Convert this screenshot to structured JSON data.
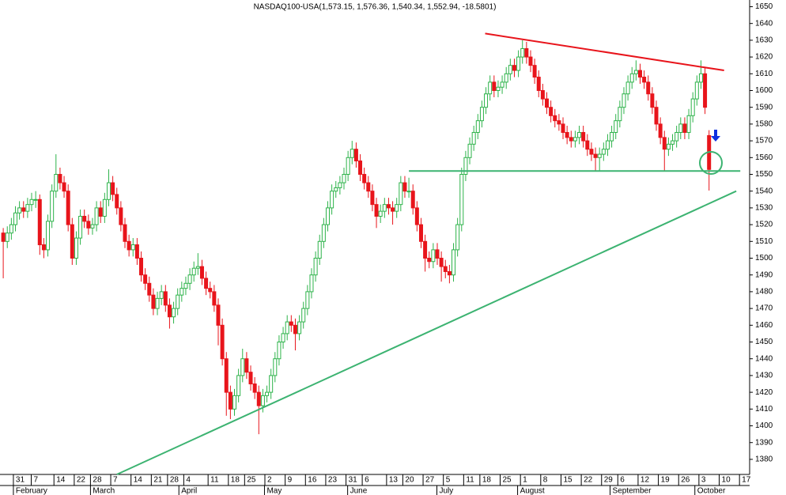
{
  "chart_data": {
    "type": "candlestick",
    "title": "NASDAQ100-USA(1,573.15, 1,576.36, 1,540.34, 1,552.94, -18.5801)",
    "up_color": "#2db34a",
    "down_color": "#e8141b",
    "ylim": [
      1371,
      1654
    ],
    "xlim": [
      -0.8,
      184
    ],
    "yticks": [
      1380,
      1390,
      1400,
      1410,
      1420,
      1430,
      1440,
      1450,
      1460,
      1470,
      1480,
      1490,
      1500,
      1510,
      1520,
      1530,
      1540,
      1550,
      1560,
      1570,
      1580,
      1590,
      1600,
      1610,
      1620,
      1630,
      1640,
      1650
    ],
    "xticks": [
      {
        "value": 2.5,
        "label": "31"
      },
      {
        "value": 6.9,
        "label": "7"
      },
      {
        "value": 12.5,
        "label": "14"
      },
      {
        "value": 17.5,
        "label": "22"
      },
      {
        "value": 21.5,
        "label": "28"
      },
      {
        "value": 26.5,
        "label": "7"
      },
      {
        "value": 31.5,
        "label": "14"
      },
      {
        "value": 36.5,
        "label": "21"
      },
      {
        "value": 40.5,
        "label": "28"
      },
      {
        "value": 44.5,
        "label": "4"
      },
      {
        "value": 50.5,
        "label": "11"
      },
      {
        "value": 55.5,
        "label": "18"
      },
      {
        "value": 59.5,
        "label": "25"
      },
      {
        "value": 64.5,
        "label": "2"
      },
      {
        "value": 69.5,
        "label": "9"
      },
      {
        "value": 74.5,
        "label": "16"
      },
      {
        "value": 79.5,
        "label": "23"
      },
      {
        "value": 84.5,
        "label": "31"
      },
      {
        "value": 88.5,
        "label": "6"
      },
      {
        "value": 94.5,
        "label": "13"
      },
      {
        "value": 98.5,
        "label": "20"
      },
      {
        "value": 103.5,
        "label": "27"
      },
      {
        "value": 108.5,
        "label": "5"
      },
      {
        "value": 113.5,
        "label": "11"
      },
      {
        "value": 117.5,
        "label": "18"
      },
      {
        "value": 122.5,
        "label": "25"
      },
      {
        "value": 127.5,
        "label": "1"
      },
      {
        "value": 132.5,
        "label": "8"
      },
      {
        "value": 137.5,
        "label": "15"
      },
      {
        "value": 142.5,
        "label": "22"
      },
      {
        "value": 147.5,
        "label": "29"
      },
      {
        "value": 151.5,
        "label": "6"
      },
      {
        "value": 156.5,
        "label": "12"
      },
      {
        "value": 161.5,
        "label": "19"
      },
      {
        "value": 166.5,
        "label": "26"
      },
      {
        "value": 171.5,
        "label": "3"
      },
      {
        "value": 176.5,
        "label": "10"
      },
      {
        "value": 181.5,
        "label": "17"
      }
    ],
    "months": [
      {
        "label": "February",
        "start": 2.5
      },
      {
        "label": "March",
        "start": 21.5
      },
      {
        "label": "April",
        "start": 43.3
      },
      {
        "label": "May",
        "start": 64.4
      },
      {
        "label": "June",
        "start": 84.9
      },
      {
        "label": "July",
        "start": 106.9
      },
      {
        "label": "August",
        "start": 126.8
      },
      {
        "label": "September",
        "start": 149.6
      },
      {
        "label": "October",
        "start": 170.5
      }
    ],
    "open": [
      1515,
      1510,
      1515,
      1520,
      1527,
      1530,
      1528,
      1532,
      1535,
      1535,
      1508,
      1505,
      1522,
      1540,
      1550,
      1545,
      1540,
      1520,
      1500,
      1512,
      1525,
      1522,
      1518,
      1520,
      1530,
      1525,
      1535,
      1545,
      1538,
      1530,
      1520,
      1510,
      1505,
      1508,
      1500,
      1490,
      1485,
      1478,
      1470,
      1476,
      1480,
      1472,
      1465,
      1470,
      1478,
      1482,
      1485,
      1490,
      1494,
      1495,
      1488,
      1482,
      1480,
      1472,
      1460,
      1440,
      1420,
      1410,
      1418,
      1430,
      1440,
      1432,
      1425,
      1420,
      1412,
      1418,
      1420,
      1430,
      1440,
      1450,
      1455,
      1462,
      1460,
      1455,
      1462,
      1470,
      1480,
      1490,
      1500,
      1510,
      1520,
      1530,
      1540,
      1542,
      1545,
      1550,
      1560,
      1565,
      1558,
      1550,
      1545,
      1540,
      1532,
      1525,
      1528,
      1532,
      1530,
      1528,
      1532,
      1545,
      1540,
      1540,
      1530,
      1520,
      1510,
      1500,
      1498,
      1505,
      1500,
      1495,
      1492,
      1490,
      1505,
      1520,
      1550,
      1560,
      1568,
      1575,
      1582,
      1590,
      1598,
      1605,
      1600,
      1602,
      1605,
      1610,
      1615,
      1612,
      1620,
      1625,
      1620,
      1615,
      1608,
      1600,
      1595,
      1590,
      1585,
      1582,
      1580,
      1575,
      1572,
      1570,
      1572,
      1575,
      1570,
      1565,
      1562,
      1560,
      1562,
      1565,
      1570,
      1575,
      1582,
      1590,
      1598,
      1605,
      1610,
      1612,
      1608,
      1605,
      1598,
      1590,
      1580,
      1572,
      1565,
      1568,
      1570,
      1575,
      1580,
      1575,
      1585,
      1595,
      1605,
      1610,
      1573.15
    ],
    "high": [
      1518,
      1519,
      1524,
      1531,
      1534,
      1534,
      1536,
      1539,
      1540,
      1538,
      1512,
      1526,
      1544,
      1562,
      1554,
      1549,
      1544,
      1524,
      1516,
      1529,
      1529,
      1526,
      1524,
      1534,
      1534,
      1539,
      1553,
      1549,
      1542,
      1534,
      1524,
      1514,
      1512,
      1512,
      1504,
      1494,
      1489,
      1482,
      1480,
      1484,
      1484,
      1476,
      1474,
      1482,
      1486,
      1489,
      1494,
      1498,
      1503,
      1499,
      1492,
      1486,
      1484,
      1476,
      1464,
      1444,
      1424,
      1422,
      1434,
      1446,
      1444,
      1436,
      1429,
      1424,
      1422,
      1424,
      1434,
      1444,
      1454,
      1459,
      1466,
      1466,
      1464,
      1466,
      1474,
      1484,
      1494,
      1504,
      1514,
      1524,
      1534,
      1544,
      1546,
      1549,
      1554,
      1564,
      1570,
      1569,
      1562,
      1554,
      1549,
      1544,
      1536,
      1532,
      1536,
      1536,
      1534,
      1536,
      1549,
      1549,
      1548,
      1544,
      1534,
      1524,
      1514,
      1504,
      1509,
      1509,
      1504,
      1499,
      1496,
      1509,
      1524,
      1554,
      1564,
      1572,
      1579,
      1586,
      1594,
      1602,
      1609,
      1609,
      1606,
      1609,
      1614,
      1619,
      1619,
      1624,
      1630,
      1629,
      1624,
      1619,
      1612,
      1604,
      1599,
      1594,
      1589,
      1586,
      1584,
      1579,
      1576,
      1576,
      1579,
      1579,
      1574,
      1569,
      1566,
      1566,
      1569,
      1574,
      1579,
      1586,
      1594,
      1602,
      1609,
      1614,
      1618,
      1616,
      1612,
      1609,
      1602,
      1594,
      1584,
      1576,
      1572,
      1574,
      1579,
      1584,
      1584,
      1589,
      1599,
      1609,
      1618,
      1614,
      1576.36
    ],
    "low": [
      1488,
      1506,
      1511,
      1516,
      1523,
      1524,
      1524,
      1528,
      1530,
      1502,
      1500,
      1501,
      1518,
      1536,
      1541,
      1536,
      1516,
      1496,
      1496,
      1508,
      1518,
      1514,
      1514,
      1516,
      1521,
      1521,
      1531,
      1534,
      1526,
      1516,
      1506,
      1501,
      1501,
      1496,
      1486,
      1481,
      1474,
      1466,
      1466,
      1472,
      1468,
      1458,
      1461,
      1466,
      1474,
      1478,
      1481,
      1486,
      1490,
      1484,
      1478,
      1476,
      1468,
      1448,
      1436,
      1406,
      1404,
      1406,
      1414,
      1426,
      1428,
      1421,
      1416,
      1395,
      1408,
      1414,
      1416,
      1426,
      1436,
      1446,
      1451,
      1456,
      1445,
      1451,
      1458,
      1466,
      1476,
      1486,
      1496,
      1506,
      1516,
      1526,
      1536,
      1538,
      1541,
      1546,
      1556,
      1554,
      1546,
      1541,
      1536,
      1528,
      1518,
      1521,
      1524,
      1526,
      1520,
      1524,
      1528,
      1536,
      1536,
      1526,
      1516,
      1506,
      1492,
      1494,
      1494,
      1496,
      1486,
      1488,
      1485,
      1486,
      1501,
      1516,
      1546,
      1556,
      1564,
      1571,
      1578,
      1586,
      1594,
      1596,
      1596,
      1598,
      1601,
      1606,
      1608,
      1608,
      1616,
      1616,
      1611,
      1604,
      1596,
      1591,
      1586,
      1581,
      1578,
      1576,
      1571,
      1568,
      1566,
      1566,
      1568,
      1566,
      1561,
      1558,
      1552,
      1552,
      1558,
      1561,
      1566,
      1571,
      1578,
      1586,
      1594,
      1601,
      1606,
      1604,
      1601,
      1594,
      1586,
      1576,
      1568,
      1552,
      1561,
      1564,
      1566,
      1571,
      1571,
      1571,
      1581,
      1591,
      1601,
      1586,
      1540.34
    ],
    "close": [
      1510,
      1515,
      1520,
      1527,
      1530,
      1528,
      1532,
      1535,
      1535,
      1508,
      1505,
      1522,
      1540,
      1550,
      1545,
      1540,
      1520,
      1500,
      1512,
      1525,
      1522,
      1518,
      1520,
      1530,
      1525,
      1535,
      1545,
      1538,
      1530,
      1520,
      1510,
      1505,
      1508,
      1500,
      1490,
      1485,
      1478,
      1470,
      1476,
      1480,
      1472,
      1465,
      1470,
      1478,
      1482,
      1485,
      1490,
      1494,
      1495,
      1488,
      1482,
      1480,
      1472,
      1460,
      1440,
      1420,
      1410,
      1418,
      1430,
      1440,
      1432,
      1425,
      1420,
      1412,
      1418,
      1420,
      1430,
      1440,
      1450,
      1455,
      1462,
      1460,
      1455,
      1462,
      1470,
      1480,
      1490,
      1500,
      1510,
      1520,
      1530,
      1540,
      1542,
      1545,
      1550,
      1560,
      1565,
      1558,
      1550,
      1545,
      1540,
      1532,
      1525,
      1528,
      1532,
      1530,
      1528,
      1532,
      1545,
      1540,
      1540,
      1530,
      1520,
      1510,
      1500,
      1498,
      1505,
      1500,
      1495,
      1492,
      1490,
      1505,
      1520,
      1550,
      1560,
      1568,
      1575,
      1582,
      1590,
      1598,
      1605,
      1600,
      1602,
      1605,
      1610,
      1615,
      1612,
      1620,
      1625,
      1620,
      1615,
      1608,
      1600,
      1595,
      1590,
      1585,
      1582,
      1580,
      1575,
      1572,
      1570,
      1572,
      1575,
      1570,
      1565,
      1562,
      1560,
      1562,
      1565,
      1570,
      1575,
      1582,
      1590,
      1598,
      1605,
      1610,
      1612,
      1608,
      1605,
      1598,
      1590,
      1580,
      1572,
      1565,
      1568,
      1570,
      1575,
      1580,
      1575,
      1585,
      1595,
      1605,
      1610,
      1590,
      1552.94
    ],
    "lines": [
      {
        "color": "#e8141b",
        "x": [
          118.8,
          177.7
        ],
        "y": [
          1634,
          1612
        ]
      },
      {
        "color": "#3cb371",
        "x": [
          100,
          181.7
        ],
        "y": [
          1552,
          1552
        ]
      },
      {
        "color": "#3cb371",
        "x": [
          28,
          180.7
        ],
        "y": [
          1371,
          1540
        ]
      }
    ]
  }
}
